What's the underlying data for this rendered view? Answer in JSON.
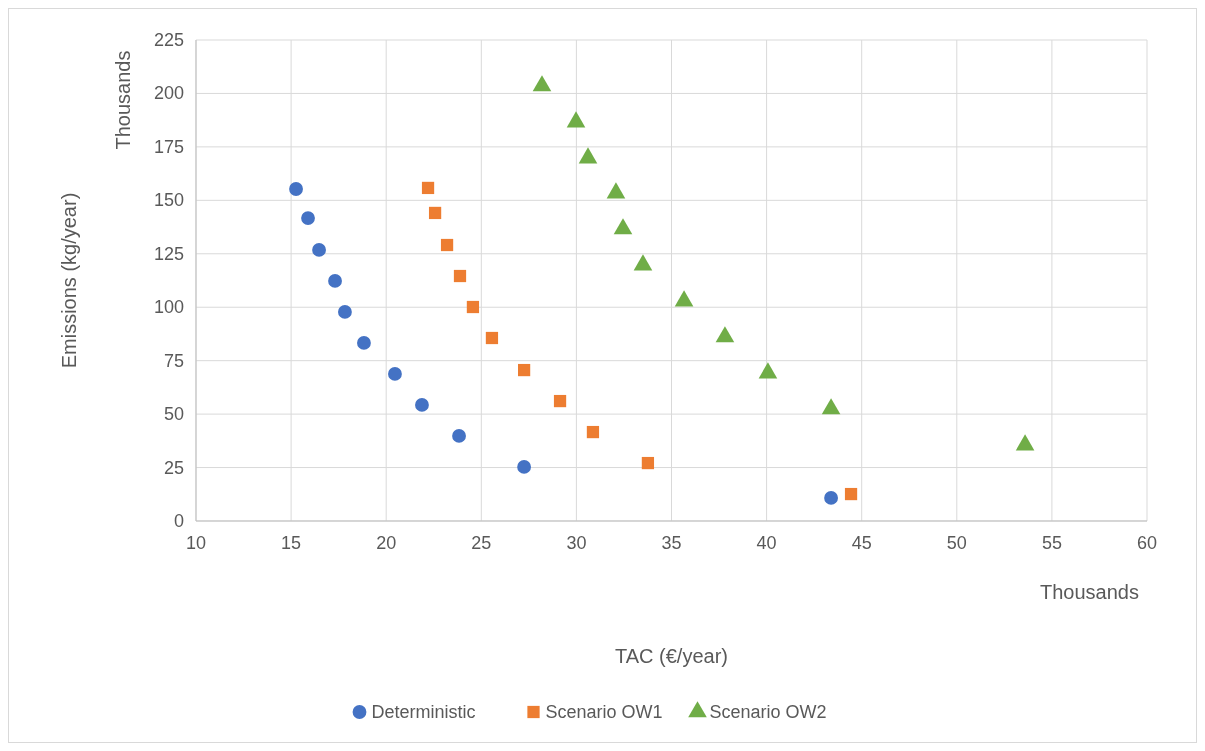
{
  "chart_data": {
    "type": "scatter",
    "xlabel": "TAC (€/year)",
    "ylabel": "Emissions (kg/year)",
    "annotations": [
      "Thousands",
      "Thousands"
    ],
    "xlim": [
      10,
      60
    ],
    "xticks": [
      10,
      15,
      20,
      25,
      30,
      35,
      40,
      45,
      50,
      55,
      60
    ],
    "ylim": [
      0,
      225
    ],
    "yticks": [
      0,
      25,
      50,
      75,
      100,
      125,
      150,
      175,
      200,
      225
    ],
    "grid": true,
    "legend": "bottom",
    "series": [
      {
        "name": "Deterministic",
        "color": "#4472c4",
        "marker": "circle",
        "x": [
          15.26,
          15.89,
          16.47,
          17.31,
          17.83,
          18.83,
          20.46,
          21.88,
          23.83,
          27.25,
          43.39
        ],
        "values": [
          155.3,
          141.7,
          126.8,
          112.3,
          97.8,
          83.3,
          68.8,
          54.3,
          39.8,
          25.3,
          10.8
        ]
      },
      {
        "name": "Scenario OW1",
        "color": "#ed7d31",
        "marker": "square",
        "x": [
          22.2,
          22.57,
          23.2,
          23.88,
          24.56,
          25.56,
          27.25,
          29.14,
          30.87,
          33.76,
          44.44
        ],
        "values": [
          155.8,
          144.1,
          129.1,
          114.6,
          100.1,
          85.6,
          70.6,
          56.1,
          41.6,
          27.1,
          12.6
        ]
      },
      {
        "name": "Scenario OW2",
        "color": "#70ad47",
        "marker": "triangle",
        "x": [
          28.19,
          29.98,
          30.61,
          32.08,
          32.45,
          33.5,
          35.66,
          37.81,
          40.07,
          43.39,
          53.59
        ],
        "values": [
          203.5,
          186.6,
          169.8,
          153.4,
          136.6,
          119.7,
          102.9,
          86.1,
          69.2,
          52.4,
          35.5
        ]
      }
    ]
  }
}
